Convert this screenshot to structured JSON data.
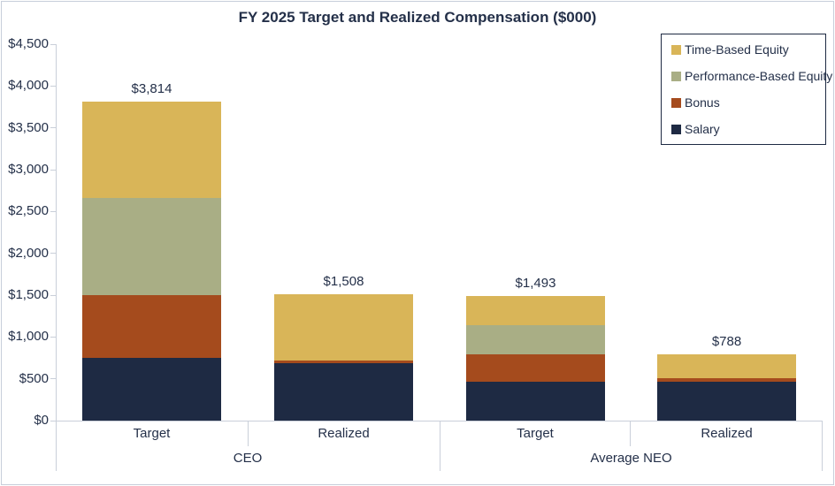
{
  "title": "FY 2025 Target and Realized Compensation ($000)",
  "chart_data": {
    "type": "bar",
    "stacked": true,
    "title": "FY 2025 Target and Realized Compensation ($000)",
    "groups": [
      "CEO",
      "Average NEO"
    ],
    "categories": [
      "Target",
      "Realized",
      "Target",
      "Realized"
    ],
    "series": [
      {
        "name": "Salary",
        "color": "#1E2A43",
        "values": [
          750,
          685,
          465,
          465
        ]
      },
      {
        "name": "Bonus",
        "color": "#A54B1D",
        "values": [
          750,
          35,
          330,
          45
        ]
      },
      {
        "name": "Performance-Based Equity",
        "color": "#A9AE85",
        "values": [
          1157,
          0,
          345,
          0
        ]
      },
      {
        "name": "Time-Based Equity",
        "color": "#D9B558",
        "values": [
          1157,
          788,
          353,
          278
        ]
      }
    ],
    "bar_totals": [
      3814,
      1508,
      1493,
      788
    ],
    "total_labels": [
      "$3,814",
      "$1,508",
      "$1,493",
      "$788"
    ],
    "ylim": [
      0,
      4500
    ],
    "ytick_step": 500,
    "ytick_labels": [
      "$0",
      "$500",
      "$1,000",
      "$1,500",
      "$2,000",
      "$2,500",
      "$3,000",
      "$3,500",
      "$4,000",
      "$4,500"
    ],
    "grid": false,
    "legend_position": "top-right"
  },
  "legend": {
    "items": [
      {
        "label": "Time-Based Equity",
        "color": "#D9B558"
      },
      {
        "label": "Performance-Based Equity",
        "color": "#A9AE85"
      },
      {
        "label": "Bonus",
        "color": "#A54B1D"
      },
      {
        "label": "Salary",
        "color": "#1E2A43"
      }
    ]
  },
  "colors": {
    "text": "#243049",
    "axis_line": "#C9CFD9",
    "frame_border": "#C7CEDB",
    "legend_border": "#1E2A43"
  }
}
